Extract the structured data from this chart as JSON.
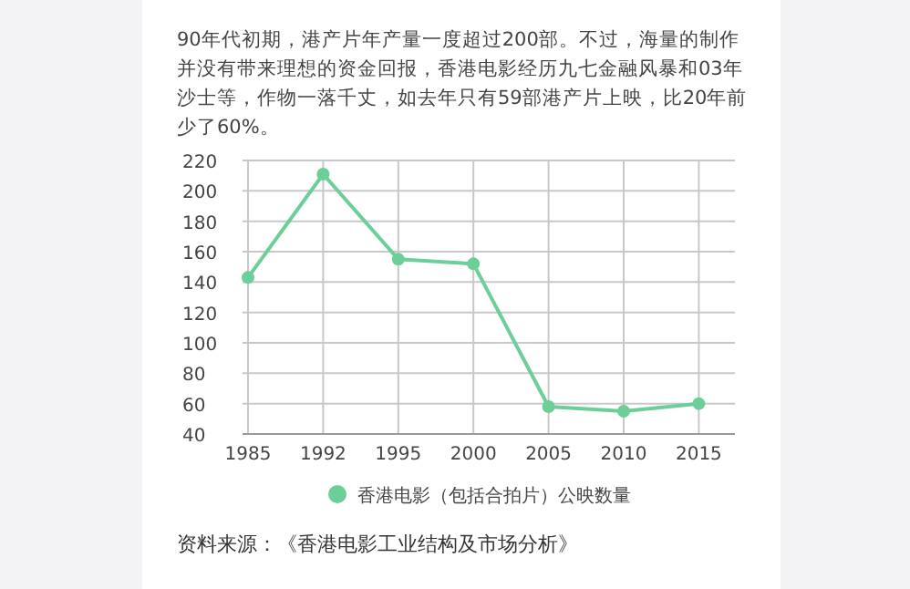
{
  "chart_data": {
    "type": "line",
    "title": "90年代初期，港产片年产量一度超过200部。不过，海量的制作并没有带来理想的资金回报，香港电影经历九七金融风暴和03年沙士等，作物一落千丈，如去年只有59部港产片上映，比20年前少了60%。",
    "categories": [
      "1985",
      "1992",
      "1995",
      "2000",
      "2005",
      "2010",
      "2015"
    ],
    "series": [
      {
        "name": "香港电影（包括合拍片）公映数量",
        "color": "#6dcf98",
        "values": [
          143,
          211,
          155,
          152,
          58,
          55,
          60
        ]
      }
    ],
    "ylim": [
      40,
      220
    ],
    "yticks": [
      40,
      60,
      80,
      100,
      120,
      140,
      160,
      180,
      200,
      220
    ],
    "grid": true,
    "legend": "bottom",
    "marker": "circle",
    "line_style": "solid",
    "annotations": [
      "资料来源：《香港电影工业结构及市场分析》"
    ]
  }
}
